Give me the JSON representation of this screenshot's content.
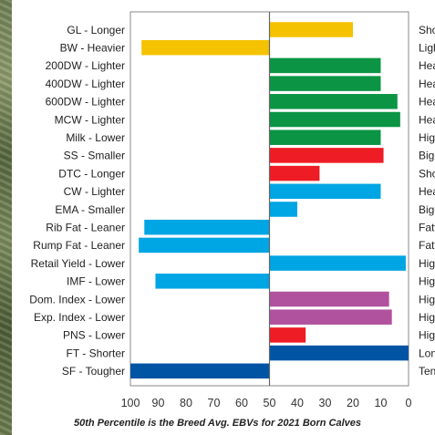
{
  "chart_data": {
    "type": "bar",
    "orientation": "horizontal",
    "categories": [
      "GL - Longer",
      "BW - Heavier",
      "200DW - Lighter",
      "400DW - Lighter",
      "600DW - Lighter",
      "MCW - Lighter",
      "Milk - Lower",
      "SS - Smaller",
      "DTC - Longer",
      "CW - Lighter",
      "EMA - Smaller",
      "Rib Fat - Leaner",
      "Rump Fat - Leaner",
      "Retail Yield - Lower",
      "IMF - Lower",
      "Dom. Index - Lower",
      "Exp. Index - Lower",
      "PNS - Lower",
      "FT - Shorter",
      "SF - Tougher"
    ],
    "right_labels": [
      "Sho",
      "Ligh",
      "Hea",
      "Hea",
      "Hea",
      "Hea",
      "High",
      "Bigg",
      "Sho",
      "Hea",
      "Bigg",
      "Fatt",
      "Fatt",
      "High",
      "High",
      "High",
      "High",
      "High",
      "Lon",
      "Ten"
    ],
    "values": [
      20,
      96,
      10,
      10,
      4,
      3,
      10,
      9,
      32,
      10,
      40,
      95,
      97,
      1,
      91,
      7,
      6,
      37,
      0,
      100
    ],
    "colors": [
      "#F5C200",
      "#F5C200",
      "#0B9444",
      "#0B9444",
      "#0B9444",
      "#0B9444",
      "#0B9444",
      "#EE1C25",
      "#EE1C25",
      "#00A5E3",
      "#00A5E3",
      "#00A5E3",
      "#00A5E3",
      "#00A5E3",
      "#00A5E3",
      "#B0529E",
      "#B0529E",
      "#EE1C25",
      "#0054A4",
      "#0054A4"
    ],
    "x_ticks": [
      100,
      90,
      80,
      70,
      60,
      50,
      40,
      30,
      20,
      10,
      0
    ],
    "xlim": [
      100,
      0
    ],
    "baseline": 50,
    "grid": false,
    "footnote": "50th Percentile is the Breed Avg. EBVs for 2021 Born Calves"
  }
}
